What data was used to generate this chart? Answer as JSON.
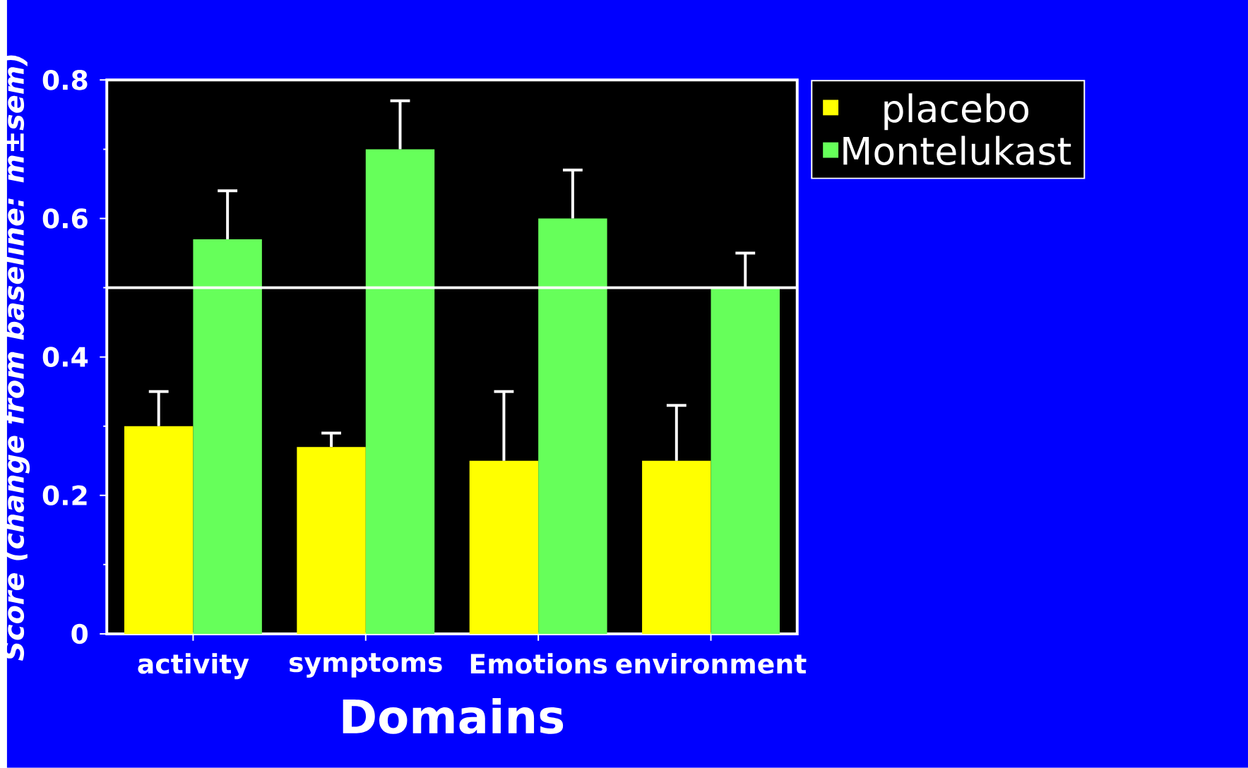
{
  "chart_data": {
    "type": "bar",
    "xlabel": "Domains",
    "ylabel": "Score (change from baseline: m±sem)",
    "categories": [
      "activity",
      "symptoms",
      "Emotions",
      "environment"
    ],
    "series": [
      {
        "name": "placebo",
        "color": "#ffff00",
        "values": [
          0.3,
          0.27,
          0.25,
          0.25
        ],
        "errors": [
          [
            0.3,
            0.35
          ],
          [
            0.27,
            0.29
          ],
          [
            0.25,
            0.35
          ],
          [
            0.25,
            0.33
          ]
        ]
      },
      {
        "name": "Montelukast",
        "color": "#66ff5a",
        "values": [
          0.57,
          0.7,
          0.6,
          0.5
        ],
        "errors": [
          [
            0.57,
            0.64
          ],
          [
            0.7,
            0.77
          ],
          [
            0.6,
            0.67
          ],
          [
            0.5,
            0.55
          ]
        ]
      }
    ],
    "ylim": [
      0,
      0.8
    ],
    "yticks": [
      0,
      0.2,
      0.4,
      0.6,
      0.8
    ],
    "ref_lines": [
      {
        "axis": "y",
        "value": 0.5,
        "color": "#ffffff"
      }
    ],
    "legend": "top right"
  }
}
